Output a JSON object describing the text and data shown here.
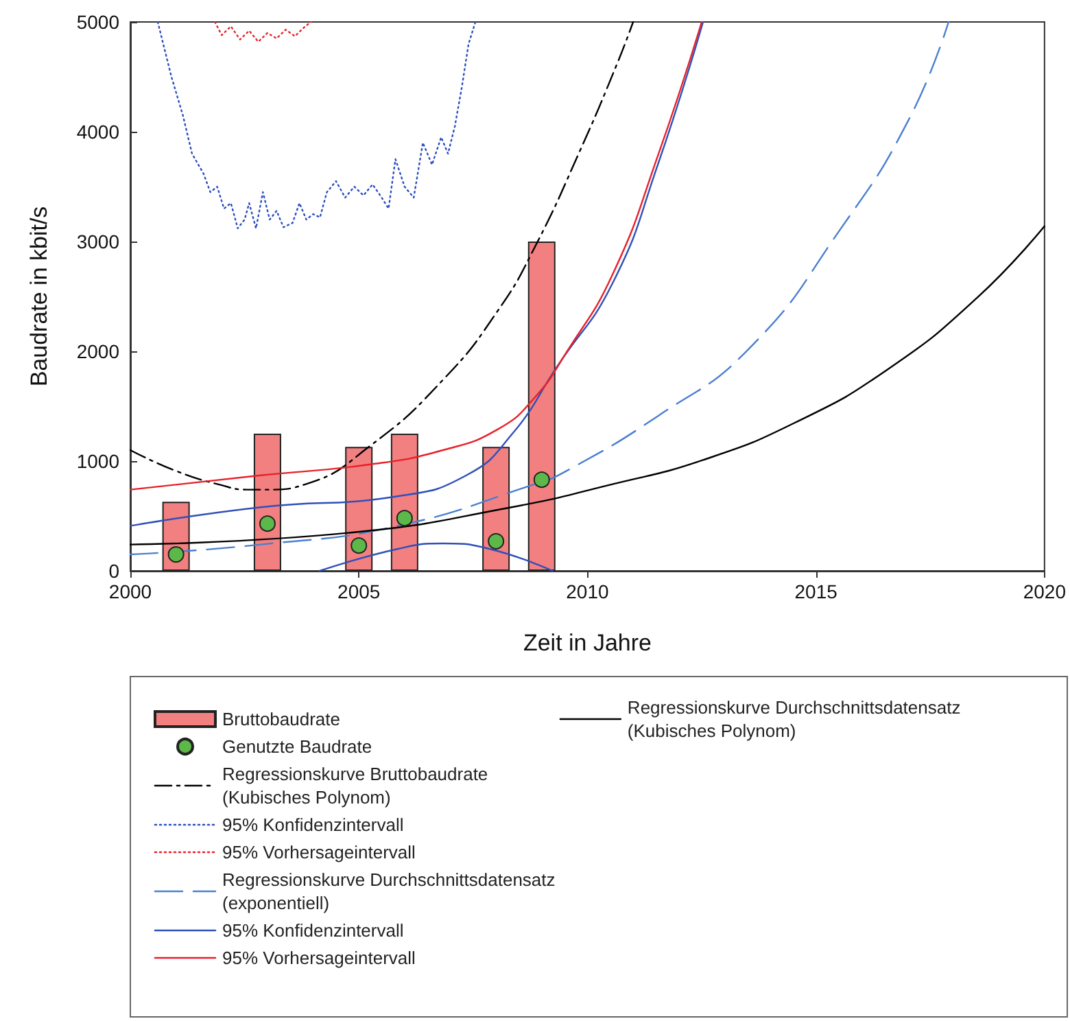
{
  "chart_data": {
    "type": "line",
    "xlabel": "Zeit in Jahre",
    "ylabel": "Baudrate in kbit/s",
    "xlim": [
      2000,
      2020
    ],
    "xticks": [
      2000,
      2005,
      2010,
      2015,
      2020
    ],
    "ylim": [
      0,
      5000
    ],
    "yticks": [
      0,
      1000,
      2000,
      3000,
      4000,
      5000
    ],
    "grid": false,
    "legend": "bottom",
    "series": [
      {
        "name": "Bruttobaudrate",
        "type": "bar",
        "color": "#f28080",
        "x": [
          2001,
          2003,
          2005,
          2006,
          2008,
          2009
        ],
        "values": [
          630,
          1250,
          1130,
          1250,
          1130,
          3000
        ]
      },
      {
        "name": "Genutzte Baudrate",
        "type": "scatter",
        "marker": "circle",
        "color": "#5cb848",
        "x": [
          2001,
          2003,
          2005,
          2006,
          2008,
          2009
        ],
        "values": [
          150,
          430,
          230,
          480,
          270,
          830
        ]
      },
      {
        "name": "Regressionskurve Bruttobaudrate\n(Kubisches Polynom)",
        "line_style": "dashdot",
        "color": "#000000",
        "x": [
          2000,
          2001,
          2002,
          2002.55,
          2003,
          2003.84,
          2005.25,
          2006.84,
          2008.04,
          2008.85,
          2009.84,
          2010.64,
          2011.0
        ],
        "values": [
          1100,
          910,
          780,
          740,
          740,
          790,
          1140,
          1740,
          2370,
          2950,
          3830,
          4610,
          5000
        ]
      },
      {
        "name": "95% Konfidenzintervall",
        "line_style": "dotted",
        "color": "#2d4fc0",
        "x": [
          2000.6,
          2000.9,
          2001.15,
          2001.35,
          2001.6,
          2001.75,
          2001.9,
          2002.05,
          2002.2,
          2002.35,
          2002.5,
          2002.6,
          2002.75,
          2002.9,
          2003.05,
          2003.2,
          2003.35,
          2003.55,
          2003.7,
          2003.85,
          2004.0,
          2004.15,
          2004.3,
          2004.5,
          2004.7,
          2004.9,
          2005.1,
          2005.3,
          2005.5,
          2005.65,
          2005.8,
          2006.0,
          2006.2,
          2006.4,
          2006.6,
          2006.8,
          2006.95,
          2007.1,
          2007.25,
          2007.4,
          2007.55
        ],
        "values": [
          5000,
          4500,
          4150,
          3800,
          3620,
          3450,
          3500,
          3300,
          3350,
          3120,
          3200,
          3350,
          3120,
          3450,
          3200,
          3280,
          3130,
          3170,
          3350,
          3200,
          3250,
          3220,
          3450,
          3550,
          3400,
          3500,
          3420,
          3520,
          3400,
          3300,
          3750,
          3500,
          3400,
          3900,
          3700,
          3950,
          3800,
          4050,
          4400,
          4800,
          5000
        ]
      },
      {
        "name": "95% Vorhersageintervall",
        "line_style": "dotted",
        "color": "#e8202a",
        "x": [
          2001.85,
          2002.0,
          2002.2,
          2002.4,
          2002.6,
          2002.8,
          2003.0,
          2003.2,
          2003.4,
          2003.6,
          2003.8,
          2003.95
        ],
        "values": [
          5000,
          4880,
          4960,
          4840,
          4920,
          4820,
          4900,
          4850,
          4930,
          4870,
          4950,
          5000
        ]
      },
      {
        "name": "Regressionskurve Durchschnittsdatensatz\n(exponentiell)",
        "line_style": "dashed",
        "color": "#4a7fd0",
        "x": [
          2000,
          2002.85,
          2005.85,
          2008.85,
          2009.54,
          2011.54,
          2013.55,
          2015.53,
          2017.03,
          2017.9
        ],
        "values": [
          150,
          240,
          410,
          790,
          910,
          1410,
          2030,
          3110,
          4110,
          5000
        ]
      },
      {
        "name": "95% Konfidenzintervall",
        "line_style": "solid",
        "color": "#3050b8",
        "x": [
          2000,
          2002.85,
          2005.85,
          2007.35,
          2008.34,
          2009.35,
          2010.55,
          2011.54,
          2012.53
        ],
        "values": [
          410,
          580,
          680,
          870,
          1240,
          1870,
          2620,
          3700,
          5000
        ]
      },
      {
        "name": "95% Vorhersageintervall",
        "line_style": "solid",
        "color": "#e8202a",
        "x": [
          2000,
          2002.85,
          2005.25,
          2006.84,
          2008.04,
          2008.85,
          2009.54,
          2010.55,
          2011.54,
          2012.5
        ],
        "values": [
          740,
          870,
          970,
          1100,
          1290,
          1580,
          1990,
          2700,
          3780,
          5000
        ]
      },
      {
        "name": "Regressionskurve Durchschnittsdatensatz\n(Kubisches Polynom)",
        "line_style": "solid",
        "color": "#000000",
        "x": [
          2000,
          2004.86,
          2008.34,
          2010.55,
          2012.53,
          2014.54,
          2016.55,
          2018.53,
          2020
        ],
        "values": [
          240,
          350,
          580,
          790,
          1010,
          1350,
          1830,
          2490,
          3140
        ]
      },
      {
        "line_style": "solid",
        "color": "#3050b8",
        "x": [
          2004.14,
          2005.85,
          2006.84,
          2007.86,
          2009.24
        ],
        "values": [
          0,
          200,
          250,
          200,
          0
        ]
      }
    ]
  }
}
